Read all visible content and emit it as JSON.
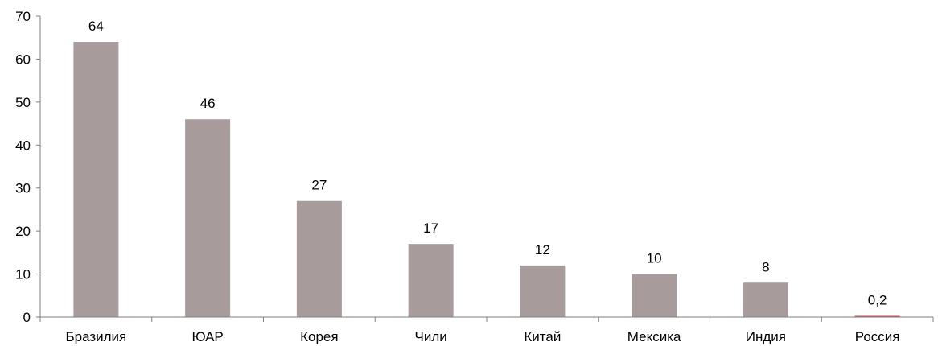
{
  "chart_data": {
    "type": "bar",
    "categories": [
      "Бразилия",
      "ЮАР",
      "Корея",
      "Чили",
      "Китай",
      "Мексика",
      "Индия",
      "Россия"
    ],
    "values": [
      64,
      46,
      27,
      17,
      12,
      10,
      8,
      0.2
    ],
    "data_labels": [
      "64",
      "46",
      "27",
      "17",
      "12",
      "10",
      "8",
      "0,2"
    ],
    "yticks": [
      "0",
      "10",
      "20",
      "30",
      "40",
      "50",
      "60",
      "70"
    ],
    "ylim": [
      0,
      70
    ],
    "grid": false,
    "legend": "none",
    "colors": {
      "bar": "#a89b9c",
      "highlight_bar": "#c0504d",
      "axis": "#7f7f7f"
    },
    "highlight_index": 7
  }
}
